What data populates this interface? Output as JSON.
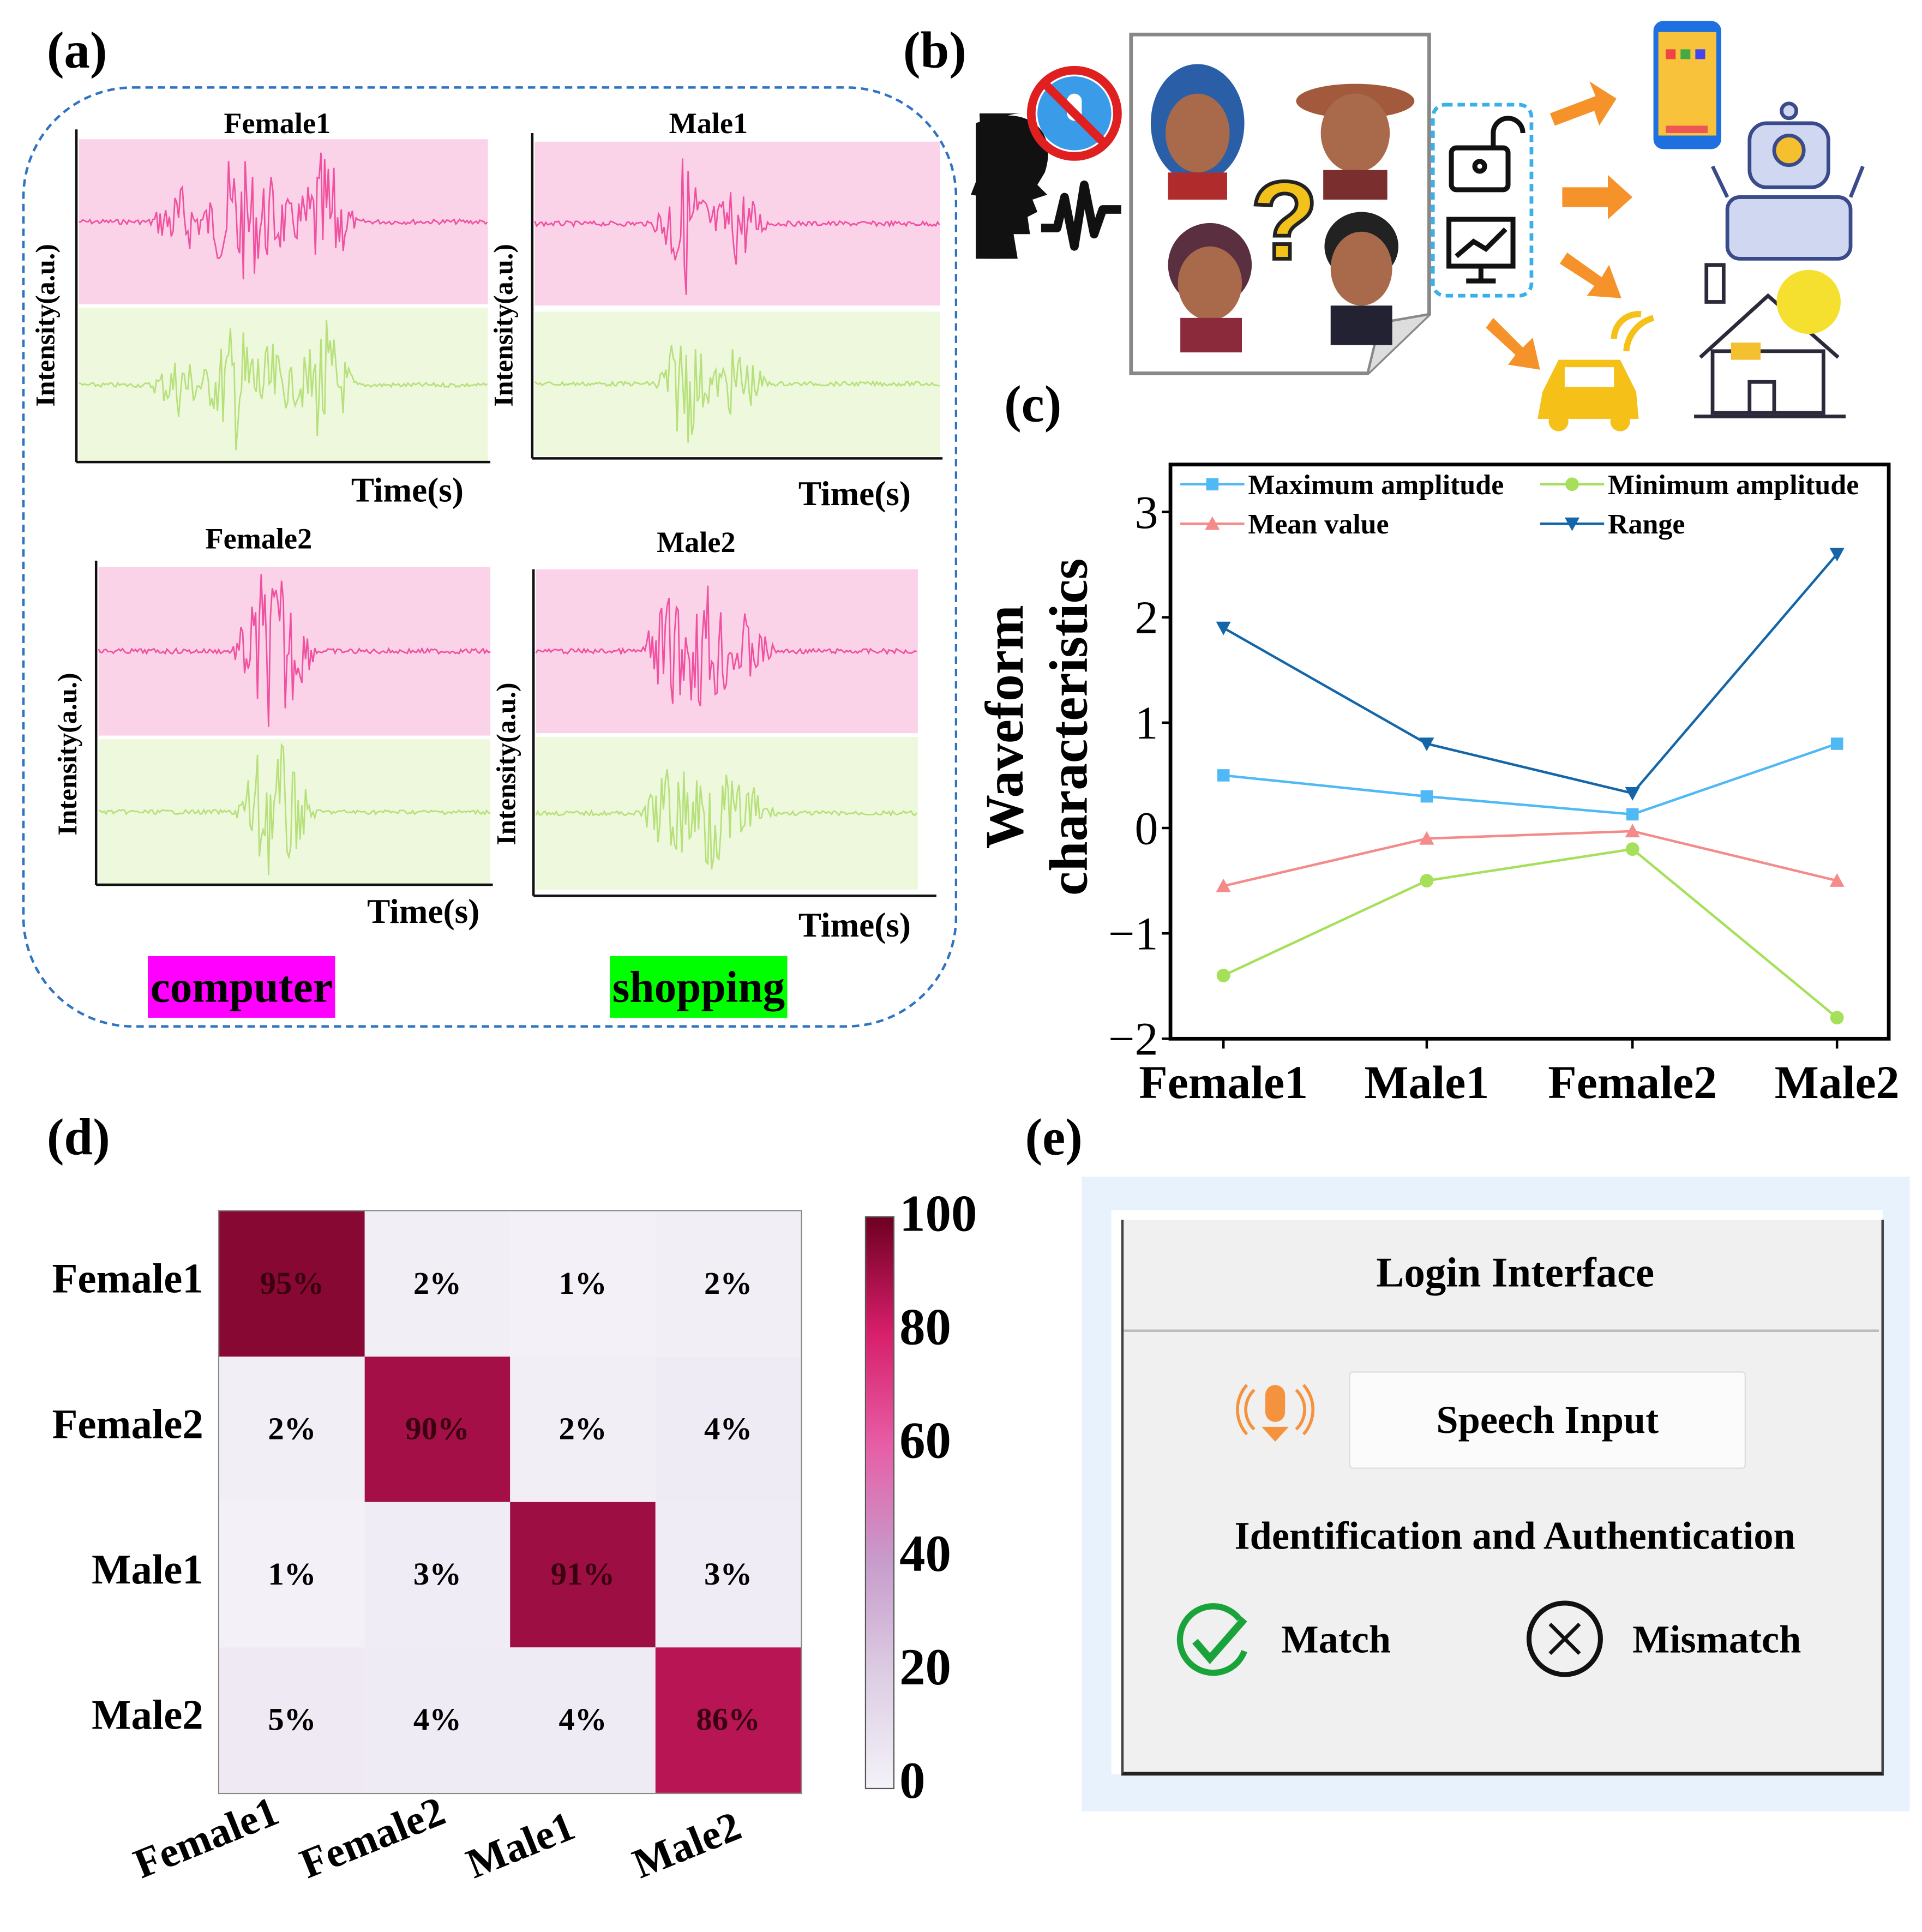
{
  "panel_labels": {
    "a": "(a)",
    "b": "(b)",
    "c": "(c)",
    "d": "(d)",
    "e": "(e)"
  },
  "panel_a": {
    "plots": [
      {
        "title": "Female1",
        "ylabel": "Intensity(a.u.)",
        "xlabel": "Time(s)"
      },
      {
        "title": "Male1",
        "ylabel": "Intensity(a.u.)",
        "xlabel": "Time(s)"
      },
      {
        "title": "Female2",
        "ylabel": "Intensity(a.u.)",
        "xlabel": "Time(s)"
      },
      {
        "title": "Male2",
        "ylabel": "Intensity(a.u.)",
        "xlabel": "Time(s)"
      }
    ],
    "words": [
      {
        "text": "computer",
        "color": "#ff00ff"
      },
      {
        "text": "shopping",
        "color": "#00ff00"
      }
    ],
    "colors": {
      "pink_bg": "#fbd3e9",
      "pink_line": "#f0509f",
      "green_bg": "#eef8dc",
      "green_line": "#b6e07a",
      "dash": "#2f74c0"
    }
  },
  "panel_b": {
    "icons": [
      "speaker-head-icon",
      "no-microphone-icon",
      "avatar-icons",
      "question-mark-icon",
      "unlock-icon",
      "chart-monitor-icon",
      "arrow-icons",
      "smartphone-icon",
      "robot-icon",
      "car-icon",
      "smart-home-icon"
    ]
  },
  "chart_data": {
    "type": "line",
    "title": "",
    "xlabel": "",
    "ylabel": "Waveform characteristics",
    "categories": [
      "Female1",
      "Male1",
      "Female2",
      "Male2"
    ],
    "ylim": [
      -2,
      3.45
    ],
    "yticks": [
      -2,
      -1,
      0,
      1,
      2,
      3
    ],
    "legend_position": "top",
    "series": [
      {
        "name": "Maximum amplitude",
        "color": "#4fb9f5",
        "marker": "square",
        "values": [
          0.5,
          0.3,
          0.13,
          0.8
        ]
      },
      {
        "name": "Minimum amplitude",
        "color": "#a6e05a",
        "marker": "circle",
        "values": [
          -1.4,
          -0.5,
          -0.2,
          -1.8
        ]
      },
      {
        "name": "Mean value",
        "color": "#f58a8a",
        "marker": "triangle-up",
        "values": [
          -0.55,
          -0.1,
          -0.03,
          -0.5
        ]
      },
      {
        "name": "Range",
        "color": "#1466a8",
        "marker": "triangle-down",
        "values": [
          1.9,
          0.8,
          0.33,
          2.6
        ]
      }
    ]
  },
  "confusion_matrix": {
    "rows": [
      "Female1",
      "Female2",
      "Male1",
      "Male2"
    ],
    "cols": [
      "Female1",
      "Female2",
      "Male1",
      "Male2"
    ],
    "values": [
      [
        95,
        2,
        1,
        2
      ],
      [
        2,
        90,
        2,
        4
      ],
      [
        1,
        3,
        91,
        3
      ],
      [
        5,
        4,
        4,
        86
      ]
    ],
    "colorbar_ticks": [
      "100",
      "80",
      "60",
      "40",
      "20",
      "0"
    ],
    "range": [
      0,
      100
    ]
  },
  "panel_e": {
    "title": "Login Interface",
    "speech_button": "Speech Input",
    "section_title": "Identification and Authentication",
    "match_label": "Match",
    "mismatch_label": "Mismatch",
    "colors": {
      "bg": "#e8f2fc",
      "window": "#f0f0f0",
      "mic": "#f5923e",
      "check": "#1aa33a"
    }
  }
}
